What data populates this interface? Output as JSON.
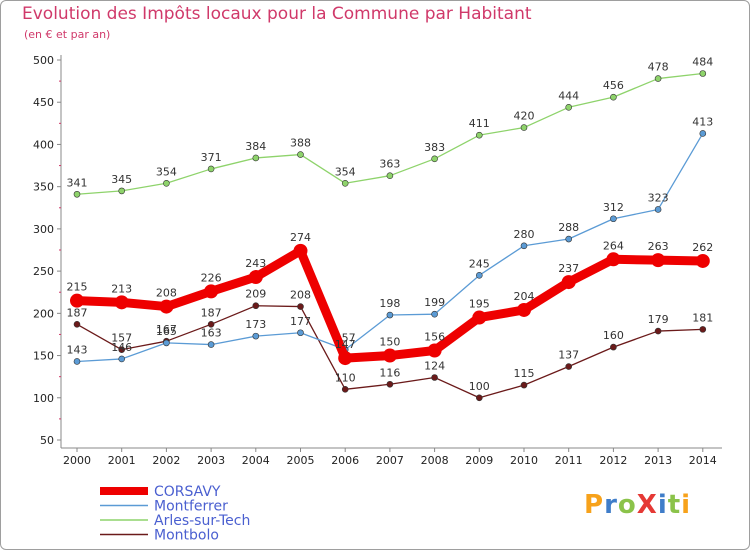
{
  "header": {
    "title": "Evolution des Impôts locaux pour la Commune par Habitant",
    "subtitle": "(en € et par an)"
  },
  "logo": {
    "text": "ProXiti",
    "colors": [
      "#f7a21b",
      "#3f7dc9",
      "#8bc34a",
      "#e53935",
      "#3f7dc9",
      "#8bc34a",
      "#f7a21b"
    ]
  },
  "chart_data": {
    "type": "line",
    "x": [
      "2000",
      "2001",
      "2002",
      "2003",
      "2004",
      "2005",
      "2006",
      "2007",
      "2008",
      "2009",
      "2010",
      "2011",
      "2012",
      "2013",
      "2014"
    ],
    "ylim": [
      50,
      500
    ],
    "yticks": [
      50,
      100,
      150,
      200,
      250,
      300,
      350,
      400,
      450,
      500
    ],
    "grid": false,
    "legend_position": "bottom-left",
    "series": [
      {
        "name": "CORSAVY",
        "color": "#ee0000",
        "bold": true,
        "values": [
          215,
          213,
          208,
          226,
          243,
          274,
          147,
          150,
          156,
          195,
          204,
          237,
          264,
          263,
          262
        ]
      },
      {
        "name": "Montferrer",
        "color": "#5b9bd5",
        "bold": false,
        "values": [
          143,
          146,
          165,
          163,
          173,
          177,
          157,
          198,
          199,
          245,
          280,
          288,
          312,
          323,
          413
        ]
      },
      {
        "name": "Arles-sur-Tech",
        "color": "#8ed36b",
        "bold": false,
        "values": [
          341,
          345,
          354,
          371,
          384,
          388,
          354,
          363,
          383,
          411,
          420,
          444,
          456,
          478,
          484
        ]
      },
      {
        "name": "Montbolo",
        "color": "#6b1a1a",
        "bold": false,
        "values": [
          187,
          157,
          167,
          187,
          209,
          208,
          110,
          116,
          124,
          100,
          115,
          137,
          160,
          179,
          181
        ]
      }
    ]
  }
}
